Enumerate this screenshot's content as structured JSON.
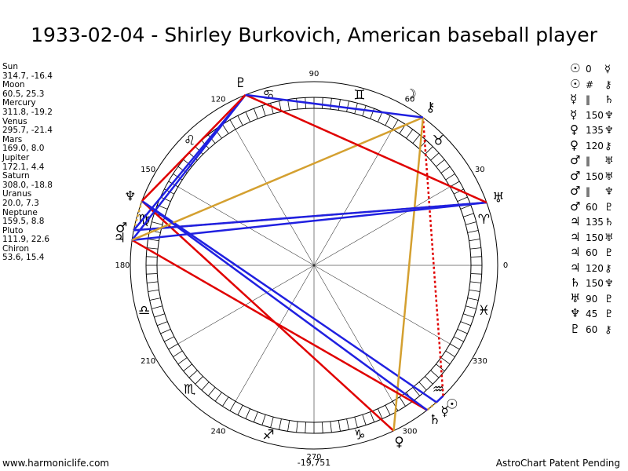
{
  "title": "1933-02-04 - Shirley Burkovich, American baseball player",
  "planets": [
    {
      "name": "Sun",
      "coords": "314.7, -16.4",
      "glyph": "☉"
    },
    {
      "name": "Moon",
      "coords": "60.5, 25.3",
      "glyph": "☽"
    },
    {
      "name": "Mercury",
      "coords": "311.8, -19.2",
      "glyph": "☿"
    },
    {
      "name": "Venus",
      "coords": "295.7, -21.4",
      "glyph": "♀"
    },
    {
      "name": "Mars",
      "coords": "169.0, 8.0",
      "glyph": "♂"
    },
    {
      "name": "Jupiter",
      "coords": "172.1, 4.4",
      "glyph": "♃"
    },
    {
      "name": "Saturn",
      "coords": "308.0, -18.8",
      "glyph": "♄"
    },
    {
      "name": "Uranus",
      "coords": "20.0, 7.3",
      "glyph": "♅"
    },
    {
      "name": "Neptune",
      "coords": "159.5, 8.8",
      "glyph": "♆"
    },
    {
      "name": "Pluto",
      "coords": "111.9, 22.6",
      "glyph": "♇"
    },
    {
      "name": "Chiron",
      "coords": "53.6, 15.4",
      "glyph": "⚷"
    }
  ],
  "aspects": [
    {
      "from": "☉",
      "aspect": "0",
      "to": "☿",
      "color": "#2020e0",
      "dashed": false
    },
    {
      "from": "☉",
      "aspect": "#",
      "to": "⚷",
      "color": "#e00000",
      "dashed": true
    },
    {
      "from": "☿",
      "aspect": "‖",
      "to": "♄",
      "color": "#d4a030",
      "dashed": true
    },
    {
      "from": "☿",
      "aspect": "150",
      "to": "♆",
      "color": "#2020e0",
      "dashed": false
    },
    {
      "from": "♀",
      "aspect": "135",
      "to": "♆",
      "color": "#e00000",
      "dashed": false
    },
    {
      "from": "♀",
      "aspect": "120",
      "to": "⚷",
      "color": "#d4a030",
      "dashed": false
    },
    {
      "from": "♂",
      "aspect": "‖",
      "to": "♅",
      "color": "#d4a030",
      "dashed": true
    },
    {
      "from": "♂",
      "aspect": "150",
      "to": "♅",
      "color": "#2020e0",
      "dashed": false
    },
    {
      "from": "♂",
      "aspect": "‖",
      "to": "♆",
      "color": "#d4a030",
      "dashed": true
    },
    {
      "from": "♂",
      "aspect": "60",
      "to": "♇",
      "color": "#2020e0",
      "dashed": false
    },
    {
      "from": "♃",
      "aspect": "135",
      "to": "♄",
      "color": "#e00000",
      "dashed": false
    },
    {
      "from": "♃",
      "aspect": "150",
      "to": "♅",
      "color": "#2020e0",
      "dashed": false
    },
    {
      "from": "♃",
      "aspect": "60",
      "to": "♇",
      "color": "#2020e0",
      "dashed": false
    },
    {
      "from": "♃",
      "aspect": "120",
      "to": "⚷",
      "color": "#d4a030",
      "dashed": false
    },
    {
      "from": "♄",
      "aspect": "150",
      "to": "♆",
      "color": "#2020e0",
      "dashed": false
    },
    {
      "from": "♅",
      "aspect": "90",
      "to": "♇",
      "color": "#e00000",
      "dashed": false
    },
    {
      "from": "♆",
      "aspect": "45",
      "to": "♇",
      "color": "#e00000",
      "dashed": false
    },
    {
      "from": "♇",
      "aspect": "60",
      "to": "⚷",
      "color": "#2020e0",
      "dashed": false
    }
  ],
  "signs": [
    "♈",
    "♉",
    "♊",
    "♋",
    "♌",
    "♍",
    "♎",
    "♏",
    "♐",
    "♑",
    "♒",
    "♓"
  ],
  "degree_labels": [
    0,
    30,
    60,
    90,
    120,
    150,
    180,
    210,
    240,
    270,
    300,
    330
  ],
  "bottom_value": "-19,751",
  "footer": {
    "left": "www.harmoniclife.com",
    "right": "AstroChart Patent Pending"
  }
}
